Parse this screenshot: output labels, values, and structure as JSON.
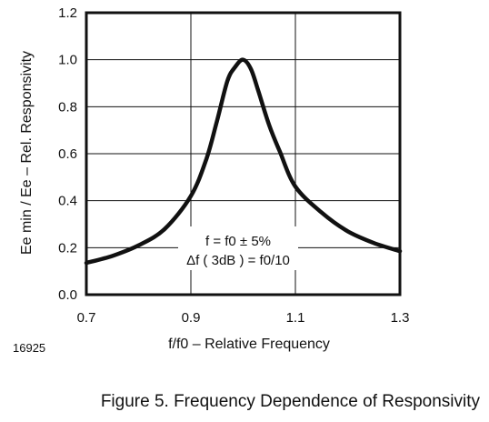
{
  "chart_data": {
    "type": "line",
    "xlabel": "f/f0 – Relative Frequency",
    "ylabel": "Ee min / Ee – Rel. Responsivity",
    "xlim": [
      0.7,
      1.3
    ],
    "ylim": [
      0.0,
      1.2
    ],
    "xticks": [
      "0.7",
      "0.9",
      "1.1",
      "1.3"
    ],
    "yticks": [
      "0.0",
      "0.2",
      "0.4",
      "0.6",
      "0.8",
      "1.0",
      "1.2"
    ],
    "grid": true,
    "x": [
      0.7,
      0.75,
      0.8,
      0.85,
      0.9,
      0.93,
      0.95,
      0.97,
      0.985,
      1.0,
      1.015,
      1.03,
      1.05,
      1.07,
      1.1,
      1.15,
      1.2,
      1.25,
      1.3
    ],
    "y": [
      0.135,
      0.165,
      0.21,
      0.28,
      0.42,
      0.58,
      0.74,
      0.91,
      0.97,
      1.0,
      0.96,
      0.86,
      0.72,
      0.61,
      0.46,
      0.35,
      0.27,
      0.22,
      0.185
    ],
    "annotation_line1": "f = f0 ± 5%",
    "annotation_line2": "Δf ( 3dB ) = f0/10",
    "figure_id": "16925",
    "caption": "Figure 5. Frequency Dependence of Responsivity"
  }
}
